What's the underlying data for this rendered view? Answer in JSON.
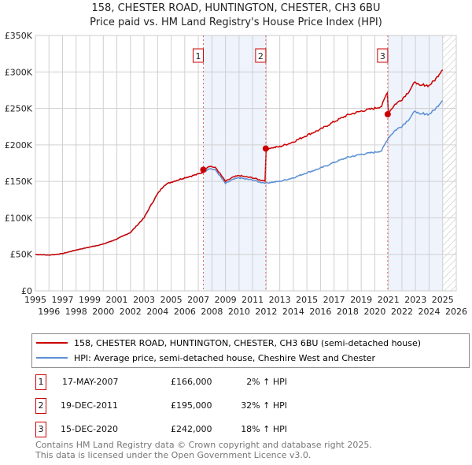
{
  "chart_data": {
    "type": "line",
    "title": "158, CHESTER ROAD, HUNTINGTON, CHESTER, CH3 6BU",
    "subtitle": "Price paid vs. HM Land Registry's House Price Index (HPI)",
    "xlim": [
      1995,
      2026
    ],
    "ylim": [
      0,
      350000
    ],
    "x_ticks": [
      "1995",
      "1996",
      "1997",
      "1998",
      "1999",
      "2000",
      "2001",
      "2002",
      "2003",
      "2004",
      "2005",
      "2006",
      "2007",
      "2008",
      "2009",
      "2010",
      "2011",
      "2012",
      "2013",
      "2014",
      "2015",
      "2016",
      "2017",
      "2018",
      "2019",
      "2020",
      "2021",
      "2022",
      "2023",
      "2024",
      "2025",
      "2026"
    ],
    "y_ticks": [
      {
        "v": 0,
        "label": "£0"
      },
      {
        "v": 50000,
        "label": "£50K"
      },
      {
        "v": 100000,
        "label": "£100K"
      },
      {
        "v": 150000,
        "label": "£150K"
      },
      {
        "v": 200000,
        "label": "£200K"
      },
      {
        "v": 250000,
        "label": "£250K"
      },
      {
        "v": 300000,
        "label": "£300K"
      },
      {
        "v": 350000,
        "label": "£350K"
      }
    ],
    "hpi_x": [
      1995,
      1996,
      1997,
      1998,
      1999,
      2000,
      2001,
      2002,
      2002.5,
      2003,
      2003.5,
      2004,
      2004.5,
      2005,
      2006,
      2007,
      2007.4,
      2007.8,
      2008.3,
      2009,
      2009.5,
      2010,
      2010.5,
      2011,
      2011.5,
      2012,
      2013,
      2014,
      2015,
      2016,
      2017,
      2018,
      2019,
      2020,
      2020.5,
      2021,
      2021.5,
      2022,
      2022.5,
      2023,
      2023.3,
      2023.6,
      2024,
      2024.5,
      2025
    ],
    "hpi_y": [
      50000,
      49000,
      51000,
      56000,
      60000,
      64000,
      71000,
      80000,
      90000,
      100000,
      117000,
      133000,
      145000,
      149000,
      155000,
      160000,
      163000,
      168000,
      165000,
      147000,
      152000,
      155000,
      153000,
      152000,
      149000,
      148000,
      150000,
      155000,
      162000,
      168000,
      176000,
      183000,
      187000,
      190000,
      192000,
      210000,
      220000,
      226000,
      235000,
      247000,
      241000,
      243000,
      242000,
      250000,
      262000
    ],
    "sales": [
      {
        "n": "1",
        "x": 2007.37,
        "price": 166000
      },
      {
        "n": "2",
        "x": 2011.97,
        "price": 195000
      },
      {
        "n": "3",
        "x": 2020.95,
        "price": 242000
      }
    ],
    "shaded": [
      [
        2007.37,
        2011.97
      ],
      [
        2020.95,
        2025.0
      ]
    ],
    "hatched_from": 2025.0,
    "colors": {
      "property": "#cc0000",
      "hpi": "#5b8fd4",
      "shade": "#eef3fc"
    }
  },
  "legend": [
    {
      "label": "158, CHESTER ROAD, HUNTINGTON, CHESTER, CH3 6BU (semi-detached house)",
      "color": "#cc0000"
    },
    {
      "label": "HPI: Average price, semi-detached house, Cheshire West and Chester",
      "color": "#5b8fd4"
    }
  ],
  "transactions": [
    {
      "n": "1",
      "date": "17-MAY-2007",
      "price": "£166,000",
      "hpi": "2% ↑ HPI"
    },
    {
      "n": "2",
      "date": "19-DEC-2011",
      "price": "£195,000",
      "hpi": "32% ↑ HPI"
    },
    {
      "n": "3",
      "date": "15-DEC-2020",
      "price": "£242,000",
      "hpi": "18% ↑ HPI"
    }
  ],
  "footer": [
    "Contains HM Land Registry data © Crown copyright and database right 2025.",
    "This data is licensed under the Open Government Licence v3.0."
  ]
}
